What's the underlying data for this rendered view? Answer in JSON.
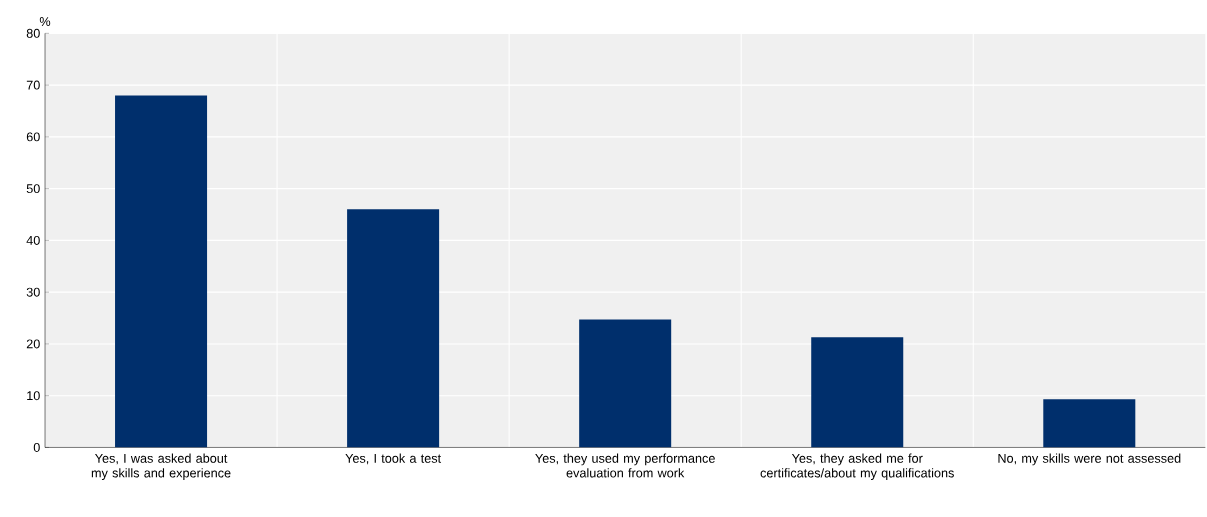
{
  "chart_data": {
    "type": "bar",
    "ylabel": "%",
    "categories": [
      "Yes, I was asked about my skills and experience",
      "Yes, I took a test",
      "Yes, they used my performance evaluation from work",
      "Yes, they asked me for certificates/about my qualifications",
      "No, my skills were not assessed"
    ],
    "values": [
      68,
      46,
      24.7,
      21.3,
      9.3
    ],
    "color": "#002f6c",
    "ylim": [
      0,
      80
    ],
    "yticks": [
      0,
      10,
      20,
      30,
      40,
      50,
      60,
      70,
      80
    ],
    "grid": true
  }
}
